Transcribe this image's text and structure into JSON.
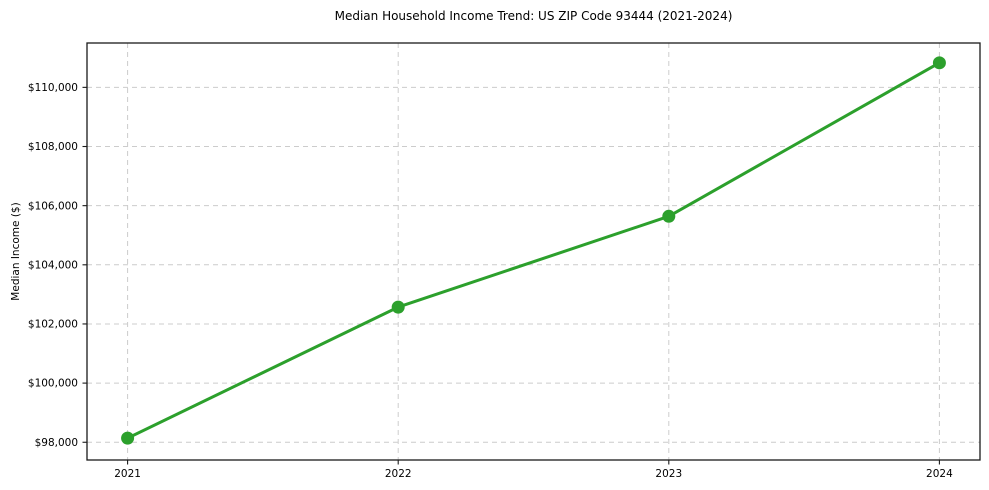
{
  "page": {
    "background": "#ffffff"
  },
  "chart_data": {
    "type": "line",
    "title": "Median Household Income Trend: US ZIP Code 93444 (2021-2024)",
    "xlabel": "",
    "ylabel": "Median Income ($)",
    "x": [
      2021,
      2022,
      2023,
      2024
    ],
    "categories": [
      "2021",
      "2022",
      "2023",
      "2024"
    ],
    "series": [
      {
        "name": "Median Household Income",
        "values": [
          98140,
          102570,
          105640,
          110830
        ]
      }
    ],
    "x_tick_labels": [
      "2021",
      "2022",
      "2023",
      "2024"
    ],
    "y_ticks": [
      98000,
      100000,
      102000,
      104000,
      106000,
      108000,
      110000
    ],
    "y_tick_labels": [
      "$98,000",
      "$100,000",
      "$102,000",
      "$104,000",
      "$106,000",
      "$108,000",
      "$110,000"
    ],
    "xlim": [
      2020.85,
      2024.15
    ],
    "ylim": [
      97400,
      111500
    ],
    "grid": true,
    "grid_style": "dashed",
    "legend_position": "none",
    "colors": {
      "line": "#2ca02c",
      "marker": "#2ca02c",
      "grid": "#cccccc",
      "axis": "#1a1a1a",
      "text": "#000000"
    }
  }
}
